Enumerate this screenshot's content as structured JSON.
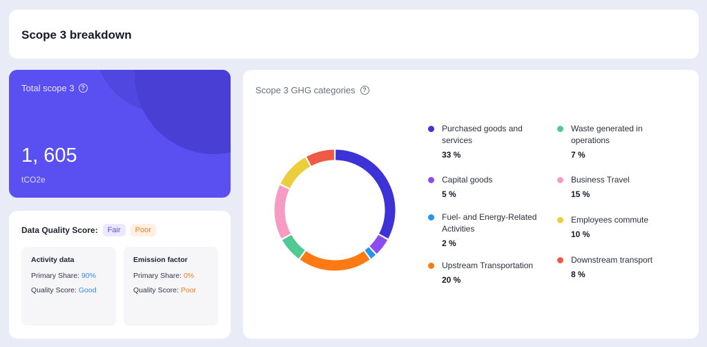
{
  "header": {
    "title": "Scope 3 breakdown"
  },
  "total": {
    "label": "Total scope 3",
    "help_icon": "?",
    "value": "1, 605",
    "unit": "tCO2e"
  },
  "data_quality": {
    "title": "Data Quality Score:",
    "badges": {
      "fair": "Fair",
      "poor": "Poor"
    },
    "activity": {
      "title": "Activity data",
      "share_label": "Primary Share:",
      "share_value": "90%",
      "quality_label": "Quality Score:",
      "quality_value": "Good"
    },
    "emission": {
      "title": "Emission factor",
      "share_label": "Primary Share:",
      "share_value": "0%",
      "quality_label": "Quality Score:",
      "quality_value": "Poor"
    }
  },
  "ghg": {
    "title": "Scope 3 GHG categories",
    "help_icon": "?",
    "categories": [
      {
        "name": "Purchased goods and services",
        "pct": "33 %",
        "value": 33,
        "color": "#3d32d6"
      },
      {
        "name": "Capital goods",
        "pct": "5 %",
        "value": 5,
        "color": "#8b4cf0"
      },
      {
        "name": "Fuel- and Energy-Related Activities",
        "pct": "2 %",
        "value": 2,
        "color": "#2494f0"
      },
      {
        "name": "Upstream Transportation",
        "pct": "20 %",
        "value": 20,
        "color": "#ff7a12"
      },
      {
        "name": "Waste generated in operations",
        "pct": "7 %",
        "value": 7,
        "color": "#52c993"
      },
      {
        "name": "Business Travel",
        "pct": "15 %",
        "value": 15,
        "color": "#f89bc3"
      },
      {
        "name": "Employees commute",
        "pct": "10 %",
        "value": 10,
        "color": "#eccd3c"
      },
      {
        "name": "Downstream transport",
        "pct": "8 %",
        "value": 8,
        "color": "#ef5a47"
      }
    ]
  },
  "chart_data": {
    "type": "pie",
    "title": "Scope 3 GHG categories",
    "categories": [
      "Purchased goods and services",
      "Capital goods",
      "Fuel- and Energy-Related Activities",
      "Upstream Transportation",
      "Waste generated in operations",
      "Business Travel",
      "Employees commute",
      "Downstream transport"
    ],
    "values": [
      33,
      5,
      2,
      20,
      7,
      15,
      10,
      8
    ],
    "unit": "%"
  }
}
